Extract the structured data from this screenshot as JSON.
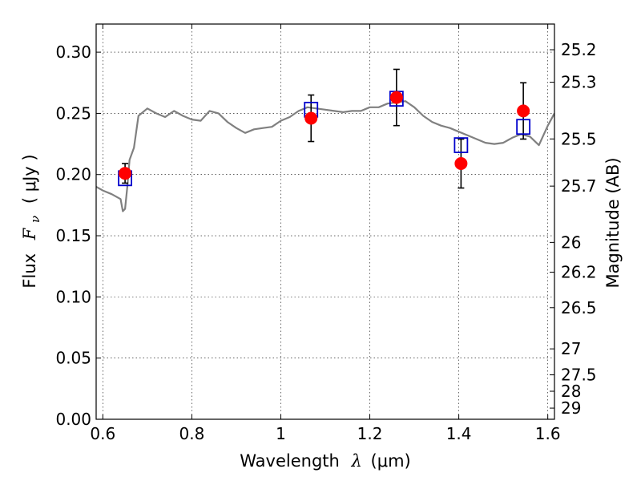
{
  "chart_data": {
    "type": "scatter",
    "xlabel_text": "Wavelength",
    "xlabel_symbol": "λ",
    "xlabel_unit": "(μm)",
    "ylabel_text": "Flux",
    "ylabel_symbol": "F",
    "ylabel_subscript": "ν",
    "ylabel_unit": "( μJy )",
    "y2label": "Magnitude (AB)",
    "xlim": [
      0.585,
      1.615
    ],
    "ylim": [
      0.0,
      0.323
    ],
    "x_ticks": [
      0.6,
      0.8,
      1.0,
      1.2,
      1.4,
      1.6
    ],
    "x_tick_labels": [
      "0.6",
      "0.8",
      "1",
      "1.2",
      "1.4",
      "1.6"
    ],
    "y_ticks": [
      0.0,
      0.05,
      0.1,
      0.15,
      0.2,
      0.25,
      0.3
    ],
    "y_tick_labels": [
      "0.00",
      "0.05",
      "0.10",
      "0.15",
      "0.20",
      "0.25",
      "0.30"
    ],
    "mag_ticks": [
      25.2,
      25.3,
      25.5,
      25.7,
      26,
      26.2,
      26.5,
      27,
      27.5,
      28,
      29
    ],
    "mag_tick_labels": [
      "25.2",
      "25.3",
      "25.5",
      "25.7",
      "26",
      "26.2",
      "26.5",
      "27",
      "27.5",
      "28",
      "29"
    ],
    "grid": true,
    "series": [
      {
        "marker": "circle",
        "color": "#ff0000",
        "x": [
          0.65,
          1.068,
          1.26,
          1.405,
          1.545
        ],
        "y": [
          0.201,
          0.246,
          0.263,
          0.209,
          0.252
        ],
        "yerr": [
          0.008,
          0.019,
          0.023,
          0.02,
          0.023
        ]
      },
      {
        "marker": "square",
        "color": "#0000cc",
        "x": [
          0.65,
          1.068,
          1.26,
          1.405,
          1.545
        ],
        "y": [
          0.197,
          0.253,
          0.262,
          0.224,
          0.239
        ]
      },
      {
        "marker": "line",
        "color": "#808080",
        "x": [
          0.585,
          0.6,
          0.62,
          0.64,
          0.645,
          0.65,
          0.655,
          0.66,
          0.67,
          0.68,
          0.7,
          0.72,
          0.74,
          0.76,
          0.78,
          0.8,
          0.82,
          0.84,
          0.86,
          0.88,
          0.9,
          0.92,
          0.94,
          0.96,
          0.98,
          1.0,
          1.02,
          1.04,
          1.06,
          1.08,
          1.1,
          1.12,
          1.14,
          1.16,
          1.18,
          1.2,
          1.22,
          1.24,
          1.26,
          1.28,
          1.3,
          1.32,
          1.34,
          1.36,
          1.38,
          1.4,
          1.42,
          1.44,
          1.46,
          1.48,
          1.5,
          1.52,
          1.54,
          1.56,
          1.58,
          1.6,
          1.615
        ],
        "y": [
          0.19,
          0.187,
          0.184,
          0.18,
          0.17,
          0.172,
          0.19,
          0.212,
          0.222,
          0.248,
          0.254,
          0.25,
          0.247,
          0.252,
          0.248,
          0.245,
          0.244,
          0.252,
          0.25,
          0.243,
          0.238,
          0.234,
          0.237,
          0.238,
          0.239,
          0.244,
          0.247,
          0.252,
          0.255,
          0.254,
          0.253,
          0.252,
          0.251,
          0.252,
          0.252,
          0.255,
          0.255,
          0.258,
          0.259,
          0.26,
          0.255,
          0.248,
          0.243,
          0.24,
          0.238,
          0.235,
          0.232,
          0.229,
          0.226,
          0.225,
          0.226,
          0.23,
          0.233,
          0.231,
          0.224,
          0.24,
          0.25
        ]
      }
    ]
  }
}
